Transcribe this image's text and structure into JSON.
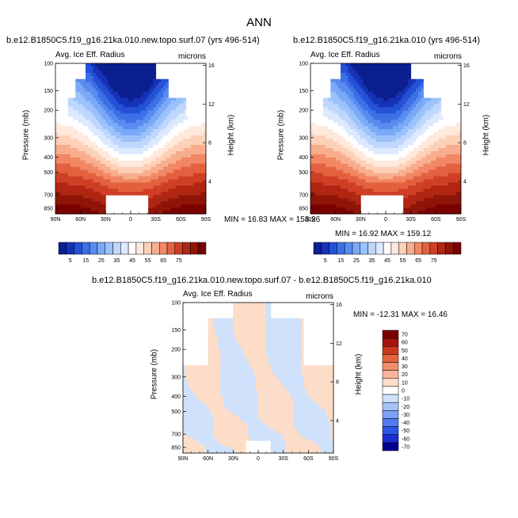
{
  "figure": {
    "title": "ANN",
    "colors": {
      "abs_scale": [
        "#0b1f8f",
        "#1632b8",
        "#2352d6",
        "#3d6fe6",
        "#5a8cf0",
        "#7aa9f7",
        "#9cc2fb",
        "#bfd7fd",
        "#dde9fe",
        "#ffffff",
        "#ffe8dc",
        "#fdd0b8",
        "#f8ae8e",
        "#f18764",
        "#e3613f",
        "#cf3f24",
        "#b02613",
        "#8f1508",
        "#7a0000"
      ],
      "diff_scale": [
        "#00008f",
        "#1a2fd0",
        "#2c55e8",
        "#4f7cf0",
        "#7aa2f6",
        "#a6c2f9",
        "#cfe1fb",
        "#ffffff",
        "#fdddc8",
        "#f8b79b",
        "#f08e6c",
        "#e3633f",
        "#c9381d",
        "#a3140a",
        "#7a0000"
      ]
    }
  },
  "chart_data": [
    {
      "type": "heatmap",
      "panel": "top-left",
      "title": "b.e12.B1850C5.f19_g16.21ka.010.new.topo.surf.07 (yrs 496-514)",
      "subtitle_left": "Avg. Ice Eff. Radius",
      "subtitle_right": "microns",
      "xlabel": "",
      "ylabel": "Pressure (mb)",
      "ylabel_right": "Height (km)",
      "x_ticks": [
        "90N",
        "60N",
        "30N",
        "0",
        "30S",
        "60S",
        "90S"
      ],
      "y_ticks": [
        "100",
        "150",
        "200",
        "300",
        "400",
        "500",
        "700",
        "850"
      ],
      "y_ticks_right": [
        "16",
        "12",
        "8",
        "4"
      ],
      "min_max_text": "MIN = 16.83   MAX = 158.26",
      "colorbar_labels": [
        "5",
        "15",
        "25",
        "35",
        "45",
        "55",
        "65",
        "75"
      ],
      "min": 16.83,
      "max": 158.26
    },
    {
      "type": "heatmap",
      "panel": "top-right",
      "title": "b.e12.B1850C5.f19_g16.21ka.010 (yrs 496-514)",
      "subtitle_left": "Avg. Ice Eff. Radius",
      "subtitle_right": "microns",
      "xlabel": "",
      "ylabel": "Pressure (mb)",
      "ylabel_right": "Height (km)",
      "x_ticks": [
        "90N",
        "60N",
        "30N",
        "0",
        "30S",
        "60S",
        "90S"
      ],
      "y_ticks": [
        "100",
        "150",
        "200",
        "300",
        "400",
        "500",
        "700",
        "850"
      ],
      "y_ticks_right": [
        "16",
        "12",
        "8",
        "4"
      ],
      "min_max_text": "MIN = 16.92   MAX = 159.12",
      "colorbar_labels": [
        "5",
        "15",
        "25",
        "35",
        "45",
        "55",
        "65",
        "75"
      ],
      "min": 16.92,
      "max": 159.12
    },
    {
      "type": "heatmap",
      "panel": "bottom",
      "title": "b.e12.B1850C5.f19_g16.21ka.010.new.topo.surf.07 - b.e12.B1850C5.f19_g16.21ka.010",
      "subtitle_left": "Avg. Ice Eff. Radius",
      "subtitle_right": "microns",
      "xlabel": "",
      "ylabel": "Pressure (mb)",
      "ylabel_right": "Height (km)",
      "x_ticks": [
        "90N",
        "60N",
        "30N",
        "0",
        "30S",
        "60S",
        "90S"
      ],
      "y_ticks": [
        "100",
        "150",
        "200",
        "300",
        "400",
        "500",
        "700",
        "850"
      ],
      "y_ticks_right": [
        "16",
        "12",
        "8",
        "4"
      ],
      "min_max_text": "MIN = -12.31   MAX =  16.46",
      "colorbar_labels": [
        "70",
        "60",
        "50",
        "40",
        "30",
        "20",
        "10",
        "0",
        "-10",
        "-20",
        "-30",
        "-40",
        "-50",
        "-60",
        "-70"
      ],
      "min": -12.31,
      "max": 16.46
    }
  ]
}
